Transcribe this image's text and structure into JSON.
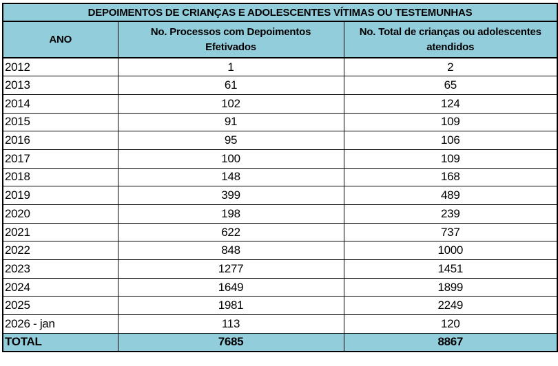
{
  "table": {
    "title": "DEPOIMENTOS DE CRIANÇAS E ADOLESCENTES VÍTIMAS OU TESTEMUNHAS",
    "columns": [
      {
        "label": "ANO"
      },
      {
        "label": "No. Processos com Depoimentos\nEfetivados"
      },
      {
        "label": "No. Total de crianças ou adolescentes\natendidos"
      }
    ],
    "rows": [
      {
        "ano": "2012",
        "processos": "1",
        "atendidos": "2"
      },
      {
        "ano": "2013",
        "processos": "61",
        "atendidos": "65"
      },
      {
        "ano": "2014",
        "processos": "102",
        "atendidos": "124"
      },
      {
        "ano": "2015",
        "processos": "91",
        "atendidos": "109"
      },
      {
        "ano": "2016",
        "processos": "95",
        "atendidos": "106"
      },
      {
        "ano": "2017",
        "processos": "100",
        "atendidos": "109"
      },
      {
        "ano": "2018",
        "processos": "148",
        "atendidos": "168"
      },
      {
        "ano": "2019",
        "processos": "399",
        "atendidos": "489"
      },
      {
        "ano": "2020",
        "processos": "198",
        "atendidos": "239"
      },
      {
        "ano": "2021",
        "processos": "622",
        "atendidos": "737"
      },
      {
        "ano": "2022",
        "processos": "848",
        "atendidos": "1000"
      },
      {
        "ano": "2023",
        "processos": "1277",
        "atendidos": "1451"
      },
      {
        "ano": "2024",
        "processos": "1649",
        "atendidos": "1899"
      },
      {
        "ano": "2025",
        "processos": "1981",
        "atendidos": "2249"
      },
      {
        "ano": "2026 - jan",
        "processos": "113",
        "atendidos": "120"
      },
      {
        "ano": "TOTAL",
        "processos": "7685",
        "atendidos": "8867",
        "is_total": true
      }
    ]
  },
  "colors": {
    "header_bg": "#92CDDC",
    "border": "#000000",
    "row_bg": "#FFFFFF"
  },
  "chart_data": {
    "type": "table",
    "title": "DEPOIMENTOS DE CRIANÇAS E ADOLESCENTES VÍTIMAS OU TESTEMUNHAS",
    "columns": [
      "ANO",
      "No. Processos com Depoimentos Efetivados",
      "No. Total de crianças ou adolescentes atendidos"
    ],
    "rows": [
      [
        "2012",
        1,
        2
      ],
      [
        "2013",
        61,
        65
      ],
      [
        "2014",
        102,
        124
      ],
      [
        "2015",
        91,
        109
      ],
      [
        "2016",
        95,
        106
      ],
      [
        "2017",
        100,
        109
      ],
      [
        "2018",
        148,
        168
      ],
      [
        "2019",
        399,
        489
      ],
      [
        "2020",
        198,
        239
      ],
      [
        "2021",
        622,
        737
      ],
      [
        "2022",
        848,
        1000
      ],
      [
        "2023",
        1277,
        1451
      ],
      [
        "2024",
        1649,
        1899
      ],
      [
        "2025",
        1981,
        2249
      ],
      [
        "2026 - jan",
        113,
        120
      ]
    ],
    "total_row": [
      "TOTAL",
      7685,
      8867
    ],
    "legend_position": "none",
    "grid": true
  }
}
